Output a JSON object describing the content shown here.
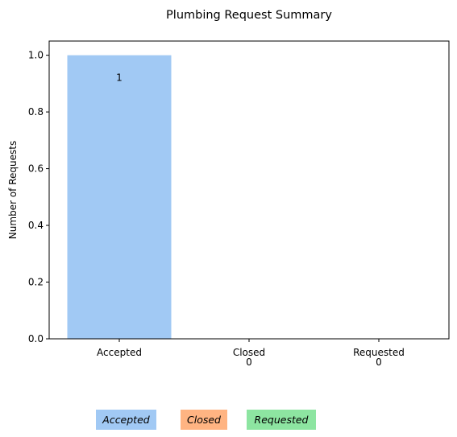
{
  "chart_data": {
    "type": "bar",
    "title": "Plumbing Request Summary",
    "xlabel": "",
    "ylabel": "Number of Requests",
    "categories": [
      "Accepted",
      "Closed",
      "Requested"
    ],
    "values": [
      1,
      0,
      0
    ],
    "value_labels": [
      "1",
      "0",
      "0"
    ],
    "ylim": [
      0,
      1.05
    ],
    "yticks": [
      {
        "value": 0.0,
        "label": "0.0"
      },
      {
        "value": 0.2,
        "label": "0.2"
      },
      {
        "value": 0.4,
        "label": "0.4"
      },
      {
        "value": 0.6,
        "label": "0.6"
      },
      {
        "value": 0.8,
        "label": "0.8"
      },
      {
        "value": 1.0,
        "label": "1.0"
      }
    ],
    "grid": false,
    "legend_position": "bottom-left",
    "legend": [
      {
        "label": "Accepted",
        "color": "#a1c9f4"
      },
      {
        "label": "Closed",
        "color": "#ffb482"
      },
      {
        "label": "Requested",
        "color": "#8de5a1"
      }
    ],
    "colors": [
      "#a1c9f4",
      "#ffb482",
      "#8de5a1"
    ]
  }
}
